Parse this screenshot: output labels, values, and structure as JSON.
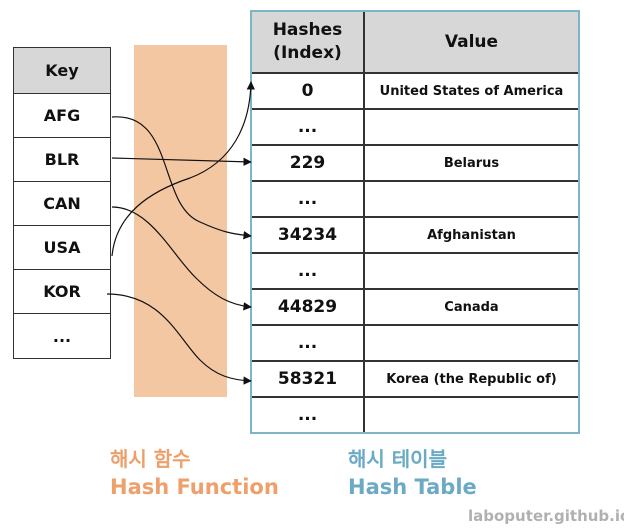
{
  "key_table": {
    "header": "Key",
    "rows": [
      "AFG",
      "BLR",
      "CAN",
      "USA",
      "KOR",
      "..."
    ]
  },
  "hash_table": {
    "header_hash_line1": "Hashes",
    "header_hash_line2": "(Index)",
    "header_value": "Value",
    "rows": [
      {
        "hash": "0",
        "value": "United States of America"
      },
      {
        "hash": "...",
        "value": ""
      },
      {
        "hash": "229",
        "value": "Belarus"
      },
      {
        "hash": "...",
        "value": ""
      },
      {
        "hash": "34234",
        "value": "Afghanistan"
      },
      {
        "hash": "...",
        "value": ""
      },
      {
        "hash": "44829",
        "value": "Canada"
      },
      {
        "hash": "...",
        "value": ""
      },
      {
        "hash": "58321",
        "value": "Korea (the Republic of)"
      },
      {
        "hash": "...",
        "value": ""
      }
    ]
  },
  "captions": {
    "hash_function_ko": "해시 함수",
    "hash_function_en": "Hash Function",
    "hash_table_ko": "해시 테이블",
    "hash_table_en": "Hash Table"
  },
  "footer": "laboputer.github.io",
  "colors": {
    "hash_function": "#f4c7a3",
    "hash_function_text": "#eda06b",
    "hash_table_border": "#7fb3c8",
    "hash_table_text": "#6aaac4",
    "header_bg": "#d7d7d7"
  }
}
